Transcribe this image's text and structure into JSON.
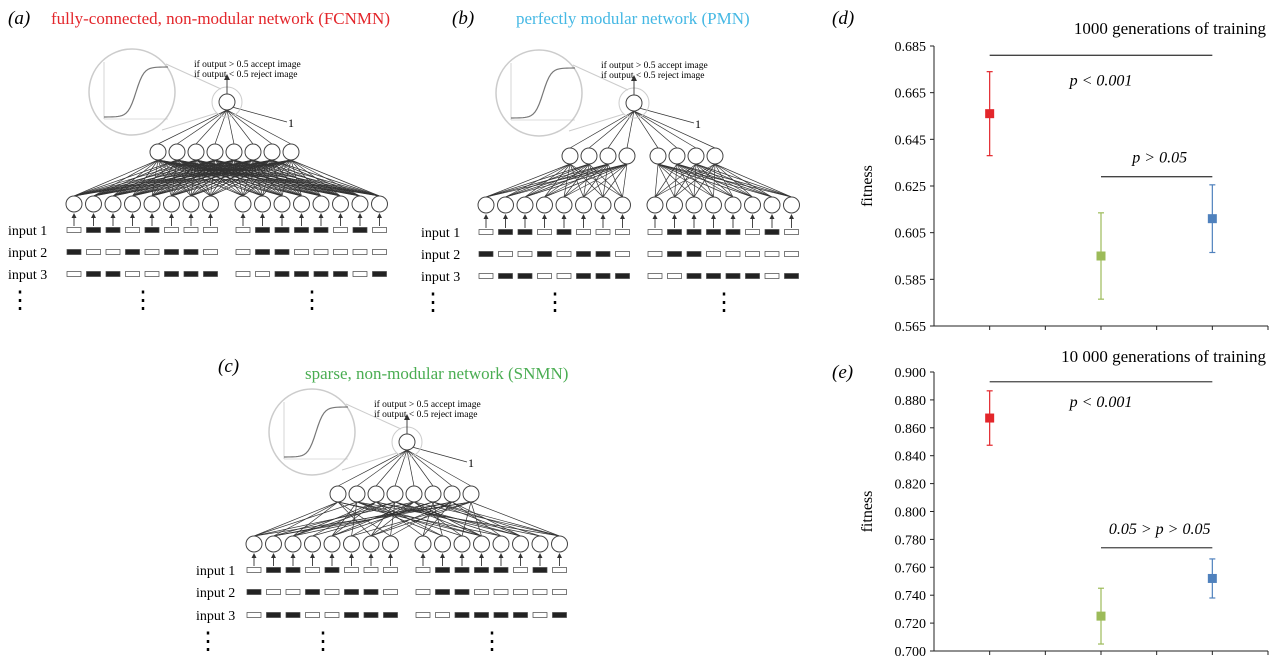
{
  "panels": {
    "a": {
      "letter": "(a)",
      "title": "fully-connected, non-modular network (FCNMN)",
      "title_color": "#e3262b"
    },
    "b": {
      "letter": "(b)",
      "title": "perfectly modular network (PMN)",
      "title_color": "#45b8e4"
    },
    "c": {
      "letter": "(c)",
      "title": "sparse, non-modular network (SNMN)",
      "title_color": "#4aad52"
    },
    "d": {
      "letter": "(d)"
    },
    "e": {
      "letter": "(e)"
    }
  },
  "network": {
    "output_rule_1": "if output > 0.5 accept image",
    "output_rule_2": "if output < 0.5 reject image",
    "bias_label": "1",
    "input_labels": [
      "input 1",
      "input 2",
      "input 3"
    ],
    "dots": "⋮",
    "patterns": [
      "0110100001111010",
      "1001011001100000",
      "0110011100111101"
    ]
  },
  "chart_data": [
    {
      "type": "scatter",
      "title": "1000 generations of training",
      "ylabel": "fitness",
      "ylim": [
        0.565,
        0.685
      ],
      "yticks": [
        "0.685",
        "0.665",
        "0.645",
        "0.625",
        "0.605",
        "0.585",
        "0.565"
      ],
      "series": [
        {
          "color": "#e3262b",
          "x": 1,
          "y": 0.656,
          "err": 0.018
        },
        {
          "color": "#9cbb59",
          "x": 2,
          "y": 0.595,
          "err": 0.0185
        },
        {
          "color": "#4f81bd",
          "x": 3,
          "y": 0.611,
          "err": 0.0145
        }
      ],
      "annotations": [
        {
          "text": "p < 0.001",
          "from": 1,
          "to": 3,
          "level": 0.681,
          "text_y": 0.668
        },
        {
          "text": "p > 0.05",
          "from": 2,
          "to": 3,
          "level": 0.629,
          "text_y": 0.635
        }
      ],
      "grid": false
    },
    {
      "type": "scatter",
      "title": "10 000 generations of training",
      "ylabel": "fitness",
      "ylim": [
        0.7,
        0.9
      ],
      "yticks": [
        "0.900",
        "0.880",
        "0.860",
        "0.840",
        "0.820",
        "0.800",
        "0.780",
        "0.760",
        "0.740",
        "0.720",
        "0.700"
      ],
      "series": [
        {
          "color": "#e3262b",
          "x": 1,
          "y": 0.867,
          "err": 0.0195
        },
        {
          "color": "#9cbb59",
          "x": 2,
          "y": 0.725,
          "err": 0.02
        },
        {
          "color": "#4f81bd",
          "x": 3,
          "y": 0.752,
          "err": 0.014
        }
      ],
      "annotations": [
        {
          "text": "p < 0.001",
          "from": 1,
          "to": 3,
          "level": 0.893,
          "text_y": 0.875
        },
        {
          "text": "0.05 > p > 0.05",
          "from": 2,
          "to": 3,
          "level": 0.774,
          "text_y": 0.784
        }
      ],
      "grid": false
    }
  ]
}
